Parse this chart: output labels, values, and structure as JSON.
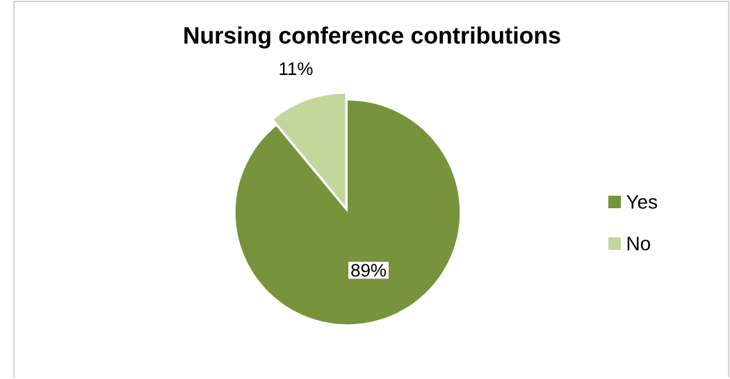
{
  "chart_data": {
    "type": "pie",
    "title": "Nursing conference contributions",
    "categories": [
      "Yes",
      "No"
    ],
    "values": [
      89,
      11
    ],
    "colors": [
      "#77933c",
      "#c3d69b"
    ],
    "data_labels": true,
    "value_labels": [
      "89%",
      "11%"
    ],
    "legend": "right"
  }
}
